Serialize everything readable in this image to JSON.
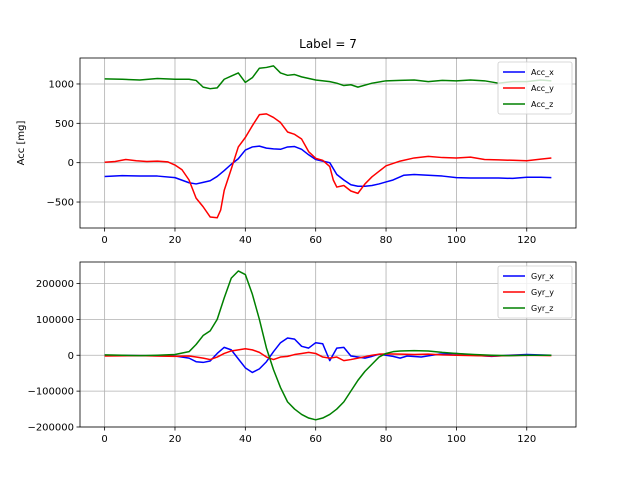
{
  "figure": {
    "title": "Label = 7"
  },
  "chart_data": [
    {
      "type": "line",
      "title": "Label = 7",
      "xlabel": "",
      "ylabel": "Acc [mg]",
      "xlim": [
        -7,
        134
      ],
      "ylim": [
        -830,
        1330
      ],
      "xticks": [
        0,
        20,
        40,
        60,
        80,
        100,
        120
      ],
      "yticks": [
        -500,
        0,
        500,
        1000
      ],
      "grid": true,
      "legend": "top-right",
      "series": [
        {
          "name": "Acc_x",
          "color": "#0000ff",
          "points": [
            [
              0,
              -175
            ],
            [
              5,
              -165
            ],
            [
              10,
              -170
            ],
            [
              15,
              -170
            ],
            [
              20,
              -190
            ],
            [
              24,
              -255
            ],
            [
              26,
              -270
            ],
            [
              28,
              -250
            ],
            [
              30,
              -230
            ],
            [
              32,
              -175
            ],
            [
              34,
              -100
            ],
            [
              36,
              -20
            ],
            [
              38,
              50
            ],
            [
              40,
              160
            ],
            [
              42,
              200
            ],
            [
              44,
              210
            ],
            [
              46,
              185
            ],
            [
              48,
              175
            ],
            [
              50,
              170
            ],
            [
              52,
              200
            ],
            [
              54,
              205
            ],
            [
              56,
              170
            ],
            [
              58,
              100
            ],
            [
              60,
              40
            ],
            [
              62,
              20
            ],
            [
              64,
              0
            ],
            [
              66,
              -150
            ],
            [
              68,
              -220
            ],
            [
              70,
              -280
            ],
            [
              72,
              -300
            ],
            [
              74,
              -300
            ],
            [
              76,
              -290
            ],
            [
              78,
              -270
            ],
            [
              80,
              -245
            ],
            [
              82,
              -220
            ],
            [
              85,
              -160
            ],
            [
              88,
              -150
            ],
            [
              92,
              -160
            ],
            [
              96,
              -170
            ],
            [
              100,
              -190
            ],
            [
              104,
              -195
            ],
            [
              108,
              -195
            ],
            [
              112,
              -195
            ],
            [
              116,
              -200
            ],
            [
              120,
              -185
            ],
            [
              124,
              -185
            ],
            [
              127,
              -190
            ]
          ]
        },
        {
          "name": "Acc_y",
          "color": "#ff0000",
          "points": [
            [
              0,
              5
            ],
            [
              3,
              15
            ],
            [
              6,
              40
            ],
            [
              9,
              25
            ],
            [
              12,
              15
            ],
            [
              15,
              20
            ],
            [
              18,
              10
            ],
            [
              20,
              -30
            ],
            [
              22,
              -90
            ],
            [
              24,
              -220
            ],
            [
              26,
              -450
            ],
            [
              28,
              -560
            ],
            [
              30,
              -690
            ],
            [
              32,
              -700
            ],
            [
              33,
              -600
            ],
            [
              34,
              -350
            ],
            [
              36,
              -80
            ],
            [
              38,
              200
            ],
            [
              40,
              320
            ],
            [
              42,
              470
            ],
            [
              44,
              610
            ],
            [
              46,
              620
            ],
            [
              48,
              575
            ],
            [
              50,
              510
            ],
            [
              52,
              390
            ],
            [
              54,
              360
            ],
            [
              56,
              300
            ],
            [
              58,
              140
            ],
            [
              60,
              55
            ],
            [
              62,
              30
            ],
            [
              64,
              -50
            ],
            [
              65,
              -220
            ],
            [
              66,
              -310
            ],
            [
              68,
              -290
            ],
            [
              70,
              -360
            ],
            [
              72,
              -390
            ],
            [
              74,
              -270
            ],
            [
              76,
              -180
            ],
            [
              78,
              -110
            ],
            [
              80,
              -40
            ],
            [
              84,
              20
            ],
            [
              88,
              60
            ],
            [
              92,
              80
            ],
            [
              96,
              65
            ],
            [
              100,
              60
            ],
            [
              104,
              70
            ],
            [
              108,
              40
            ],
            [
              112,
              35
            ],
            [
              116,
              30
            ],
            [
              120,
              25
            ],
            [
              124,
              45
            ],
            [
              127,
              60
            ]
          ]
        },
        {
          "name": "Acc_z",
          "color": "#008000",
          "points": [
            [
              0,
              1065
            ],
            [
              5,
              1060
            ],
            [
              10,
              1050
            ],
            [
              15,
              1070
            ],
            [
              20,
              1060
            ],
            [
              24,
              1060
            ],
            [
              26,
              1045
            ],
            [
              28,
              960
            ],
            [
              30,
              940
            ],
            [
              32,
              950
            ],
            [
              34,
              1060
            ],
            [
              36,
              1100
            ],
            [
              38,
              1140
            ],
            [
              40,
              1020
            ],
            [
              42,
              1080
            ],
            [
              44,
              1200
            ],
            [
              46,
              1210
            ],
            [
              48,
              1230
            ],
            [
              50,
              1140
            ],
            [
              52,
              1110
            ],
            [
              54,
              1120
            ],
            [
              56,
              1090
            ],
            [
              60,
              1050
            ],
            [
              64,
              1030
            ],
            [
              66,
              1010
            ],
            [
              68,
              980
            ],
            [
              70,
              990
            ],
            [
              72,
              960
            ],
            [
              76,
              1010
            ],
            [
              80,
              1040
            ],
            [
              84,
              1045
            ],
            [
              88,
              1050
            ],
            [
              92,
              1030
            ],
            [
              96,
              1045
            ],
            [
              100,
              1040
            ],
            [
              104,
              1050
            ],
            [
              108,
              1040
            ],
            [
              112,
              1010
            ],
            [
              116,
              1030
            ],
            [
              120,
              1030
            ],
            [
              124,
              1050
            ],
            [
              127,
              1040
            ]
          ]
        }
      ]
    },
    {
      "type": "line",
      "title": "",
      "xlabel": "",
      "ylabel": "",
      "xlim": [
        -7,
        134
      ],
      "ylim": [
        -200000,
        260000
      ],
      "xticks": [
        0,
        20,
        40,
        60,
        80,
        100,
        120
      ],
      "yticks": [
        -200000,
        -100000,
        0,
        100000,
        200000
      ],
      "grid": true,
      "legend": "top-right",
      "series": [
        {
          "name": "Gyr_x",
          "color": "#0000ff",
          "points": [
            [
              0,
              0
            ],
            [
              10,
              -1000
            ],
            [
              20,
              -2000
            ],
            [
              24,
              -8000
            ],
            [
              26,
              -18000
            ],
            [
              28,
              -20000
            ],
            [
              30,
              -16000
            ],
            [
              32,
              5000
            ],
            [
              34,
              22000
            ],
            [
              36,
              15000
            ],
            [
              38,
              -10000
            ],
            [
              40,
              -35000
            ],
            [
              42,
              -48000
            ],
            [
              44,
              -38000
            ],
            [
              46,
              -18000
            ],
            [
              48,
              10000
            ],
            [
              50,
              35000
            ],
            [
              52,
              48000
            ],
            [
              54,
              45000
            ],
            [
              56,
              25000
            ],
            [
              58,
              20000
            ],
            [
              60,
              35000
            ],
            [
              62,
              32000
            ],
            [
              64,
              -15000
            ],
            [
              66,
              20000
            ],
            [
              68,
              22000
            ],
            [
              70,
              -2000
            ],
            [
              72,
              -5000
            ],
            [
              74,
              -8000
            ],
            [
              76,
              -3000
            ],
            [
              78,
              3000
            ],
            [
              80,
              0
            ],
            [
              82,
              -3000
            ],
            [
              84,
              -8000
            ],
            [
              86,
              -2000
            ],
            [
              90,
              -5000
            ],
            [
              95,
              3000
            ],
            [
              100,
              5000
            ],
            [
              105,
              0
            ],
            [
              110,
              -3000
            ],
            [
              115,
              0
            ],
            [
              120,
              2000
            ],
            [
              127,
              0
            ]
          ]
        },
        {
          "name": "Gyr_y",
          "color": "#ff0000",
          "points": [
            [
              0,
              -2000
            ],
            [
              10,
              -1000
            ],
            [
              20,
              -3000
            ],
            [
              24,
              -2000
            ],
            [
              26,
              -5000
            ],
            [
              28,
              -8000
            ],
            [
              30,
              -12000
            ],
            [
              32,
              -5000
            ],
            [
              34,
              5000
            ],
            [
              36,
              12000
            ],
            [
              38,
              15000
            ],
            [
              40,
              18000
            ],
            [
              42,
              15000
            ],
            [
              44,
              8000
            ],
            [
              46,
              -5000
            ],
            [
              48,
              -12000
            ],
            [
              50,
              -5000
            ],
            [
              52,
              -3000
            ],
            [
              54,
              2000
            ],
            [
              56,
              5000
            ],
            [
              58,
              8000
            ],
            [
              60,
              5000
            ],
            [
              62,
              -5000
            ],
            [
              64,
              -8000
            ],
            [
              66,
              -5000
            ],
            [
              68,
              -15000
            ],
            [
              70,
              -12000
            ],
            [
              72,
              -8000
            ],
            [
              74,
              -4000
            ],
            [
              76,
              0
            ],
            [
              78,
              3000
            ],
            [
              80,
              4000
            ],
            [
              84,
              3000
            ],
            [
              88,
              2000
            ],
            [
              92,
              3000
            ],
            [
              96,
              1000
            ],
            [
              100,
              0
            ],
            [
              105,
              -1000
            ],
            [
              110,
              -2000
            ],
            [
              115,
              -1000
            ],
            [
              120,
              0
            ],
            [
              127,
              -1000
            ]
          ]
        },
        {
          "name": "Gyr_z",
          "color": "#008000",
          "points": [
            [
              0,
              1000
            ],
            [
              5,
              0
            ],
            [
              10,
              -1000
            ],
            [
              15,
              0
            ],
            [
              20,
              2000
            ],
            [
              24,
              10000
            ],
            [
              26,
              30000
            ],
            [
              28,
              55000
            ],
            [
              30,
              68000
            ],
            [
              32,
              100000
            ],
            [
              34,
              160000
            ],
            [
              36,
              215000
            ],
            [
              38,
              235000
            ],
            [
              40,
              225000
            ],
            [
              42,
              170000
            ],
            [
              44,
              100000
            ],
            [
              46,
              20000
            ],
            [
              48,
              -40000
            ],
            [
              50,
              -90000
            ],
            [
              52,
              -130000
            ],
            [
              54,
              -150000
            ],
            [
              56,
              -165000
            ],
            [
              58,
              -175000
            ],
            [
              60,
              -180000
            ],
            [
              62,
              -175000
            ],
            [
              64,
              -165000
            ],
            [
              66,
              -150000
            ],
            [
              68,
              -130000
            ],
            [
              70,
              -100000
            ],
            [
              72,
              -70000
            ],
            [
              74,
              -45000
            ],
            [
              76,
              -25000
            ],
            [
              78,
              -5000
            ],
            [
              80,
              5000
            ],
            [
              82,
              10000
            ],
            [
              84,
              12000
            ],
            [
              88,
              13000
            ],
            [
              92,
              12000
            ],
            [
              96,
              8000
            ],
            [
              100,
              5000
            ],
            [
              105,
              2000
            ],
            [
              110,
              0
            ],
            [
              115,
              -1000
            ],
            [
              120,
              0
            ],
            [
              127,
              0
            ]
          ]
        }
      ]
    }
  ]
}
